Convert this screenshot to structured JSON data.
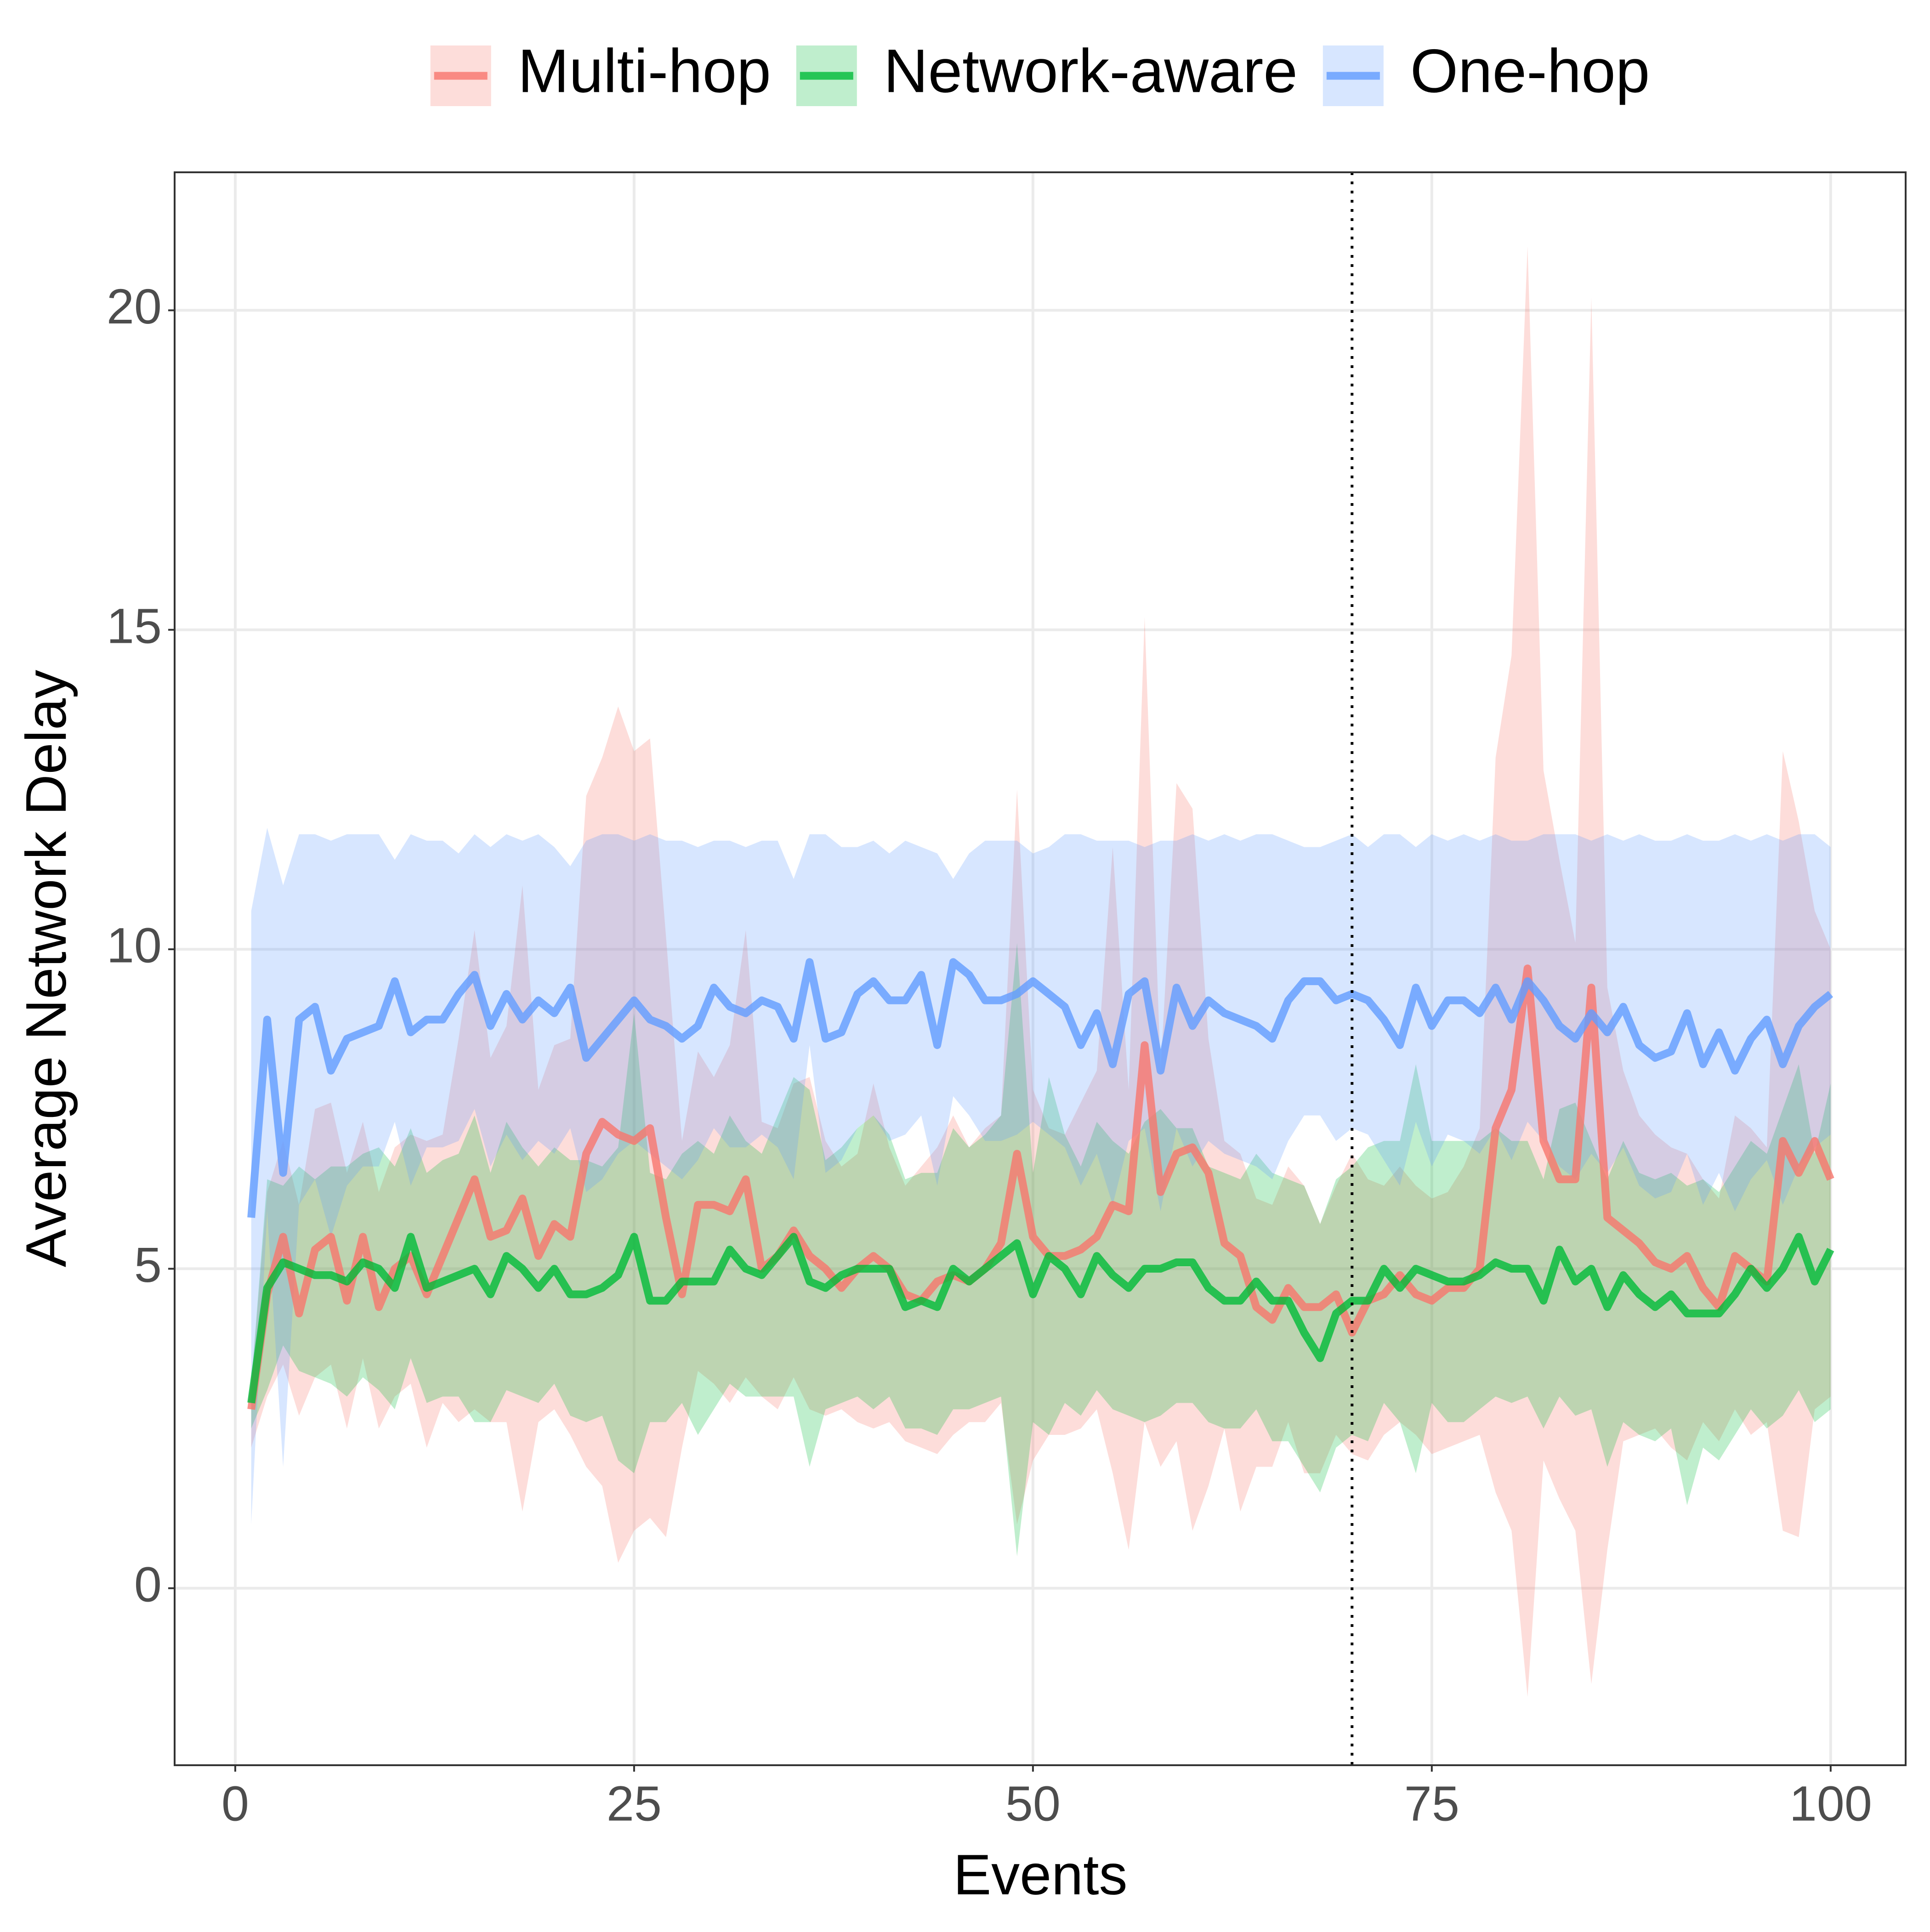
{
  "chart_data": {
    "type": "line",
    "x_label": "Events",
    "y_label": "Average Network Delay",
    "x": [
      1,
      2,
      3,
      4,
      5,
      6,
      7,
      8,
      9,
      10,
      11,
      12,
      13,
      14,
      15,
      16,
      17,
      18,
      19,
      20,
      21,
      22,
      23,
      24,
      25,
      26,
      27,
      28,
      29,
      30,
      31,
      32,
      33,
      34,
      35,
      36,
      37,
      38,
      39,
      40,
      41,
      42,
      43,
      44,
      45,
      46,
      47,
      48,
      49,
      50,
      51,
      52,
      53,
      54,
      55,
      56,
      57,
      58,
      59,
      60,
      61,
      62,
      63,
      64,
      65,
      66,
      67,
      68,
      69,
      70,
      71,
      72,
      73,
      74,
      75,
      76,
      77,
      78,
      79,
      80,
      81,
      82,
      83,
      84,
      85,
      86,
      87,
      88,
      89,
      90,
      91,
      92,
      93,
      94,
      95,
      96,
      97,
      98,
      99,
      100
    ],
    "series": [
      {
        "name": "Multi-hop",
        "color": "#F8766D",
        "values": [
          2.8,
          4.6,
          5.5,
          4.3,
          5.3,
          5.5,
          4.5,
          5.5,
          4.4,
          5.0,
          5.2,
          4.6,
          5.2,
          5.8,
          6.4,
          5.5,
          5.6,
          6.1,
          5.2,
          5.7,
          5.5,
          6.8,
          7.3,
          7.1,
          7.0,
          7.2,
          5.8,
          4.6,
          6.0,
          6.0,
          5.9,
          6.4,
          5.0,
          5.2,
          5.6,
          5.2,
          5.0,
          4.7,
          5.0,
          5.2,
          5.0,
          4.6,
          4.5,
          4.8,
          4.9,
          4.8,
          5.0,
          5.4,
          6.8,
          5.5,
          5.2,
          5.2,
          5.3,
          5.5,
          6.0,
          5.9,
          8.5,
          6.2,
          6.8,
          6.9,
          6.5,
          5.4,
          5.2,
          4.4,
          4.2,
          4.7,
          4.4,
          4.4,
          4.6,
          4.0,
          4.5,
          4.6,
          4.9,
          4.6,
          4.5,
          4.7,
          4.7,
          5.0,
          7.2,
          7.8,
          9.7,
          7.0,
          6.4,
          6.4,
          9.4,
          5.8,
          5.6,
          5.4,
          5.1,
          5.0,
          5.2,
          4.7,
          4.4,
          5.2,
          5.0,
          4.8,
          7.0,
          6.5,
          7.0,
          6.4
        ],
        "upper": [
          3.2,
          6.2,
          7.0,
          6.0,
          7.5,
          7.6,
          6.5,
          7.3,
          6.2,
          6.9,
          7.1,
          7.0,
          7.1,
          8.6,
          10.3,
          8.3,
          8.8,
          11.0,
          7.8,
          8.5,
          8.6,
          12.4,
          13.0,
          13.8,
          13.1,
          13.3,
          10.2,
          7.0,
          8.4,
          8.0,
          8.5,
          10.3,
          7.3,
          7.2,
          7.9,
          8.0,
          7.0,
          6.6,
          6.8,
          7.9,
          6.9,
          6.3,
          6.6,
          6.9,
          7.4,
          6.9,
          7.2,
          7.4,
          12.5,
          7.8,
          7.2,
          7.1,
          7.6,
          8.1,
          11.6,
          7.8,
          15.2,
          8.1,
          12.6,
          12.2,
          8.6,
          7.0,
          6.8,
          6.1,
          6.0,
          6.6,
          6.3,
          5.7,
          6.3,
          6.8,
          6.4,
          6.3,
          6.6,
          6.3,
          6.1,
          6.2,
          6.6,
          7.2,
          13.0,
          14.6,
          21.0,
          12.8,
          11.4,
          10.1,
          20.2,
          9.4,
          8.1,
          7.4,
          7.1,
          6.9,
          6.8,
          6.4,
          6.1,
          7.4,
          7.2,
          6.9,
          13.1,
          12.0,
          10.6,
          10.0
        ],
        "lower": [
          2.2,
          3.0,
          3.5,
          2.7,
          3.3,
          3.5,
          2.5,
          3.6,
          2.5,
          3.0,
          3.2,
          2.2,
          2.9,
          2.6,
          2.8,
          2.6,
          2.6,
          1.2,
          2.6,
          2.8,
          2.4,
          1.9,
          1.6,
          0.4,
          0.9,
          1.1,
          0.8,
          2.2,
          3.4,
          3.2,
          2.9,
          3.3,
          3.0,
          2.8,
          3.3,
          2.8,
          2.7,
          2.8,
          2.6,
          2.5,
          2.6,
          2.3,
          2.2,
          2.1,
          2.4,
          2.6,
          2.6,
          2.9,
          1.0,
          2.0,
          2.4,
          2.4,
          2.5,
          2.8,
          1.8,
          0.6,
          2.6,
          1.9,
          2.3,
          0.9,
          1.6,
          2.5,
          1.2,
          1.9,
          1.9,
          2.6,
          1.8,
          1.8,
          2.4,
          2.1,
          2.0,
          2.4,
          2.6,
          2.4,
          2.1,
          2.2,
          2.3,
          2.4,
          1.5,
          0.9,
          -1.7,
          2.0,
          1.4,
          0.9,
          -1.5,
          0.6,
          2.3,
          2.4,
          2.5,
          2.2,
          2.0,
          2.6,
          2.3,
          2.8,
          2.4,
          2.6,
          0.9,
          0.8,
          2.8,
          3.0
        ]
      },
      {
        "name": "Network-aware",
        "color": "#00BA38",
        "values": [
          2.9,
          4.7,
          5.1,
          5.0,
          4.9,
          4.9,
          4.8,
          5.1,
          5.0,
          4.7,
          5.5,
          4.7,
          4.8,
          4.9,
          5.0,
          4.6,
          5.2,
          5.0,
          4.7,
          5.0,
          4.6,
          4.6,
          4.7,
          4.9,
          5.5,
          4.5,
          4.5,
          4.8,
          4.8,
          4.8,
          5.3,
          5.0,
          4.9,
          5.2,
          5.5,
          4.8,
          4.7,
          4.9,
          5.0,
          5.0,
          5.0,
          4.4,
          4.5,
          4.4,
          5.0,
          4.8,
          5.0,
          5.2,
          5.4,
          4.6,
          5.2,
          5.0,
          4.6,
          5.2,
          4.9,
          4.7,
          5.0,
          5.0,
          5.1,
          5.1,
          4.7,
          4.5,
          4.5,
          4.8,
          4.5,
          4.5,
          4.0,
          3.6,
          4.3,
          4.5,
          4.5,
          5.0,
          4.7,
          5.0,
          4.9,
          4.8,
          4.8,
          4.9,
          5.1,
          5.0,
          5.0,
          4.5,
          5.3,
          4.8,
          5.0,
          4.4,
          4.9,
          4.6,
          4.4,
          4.6,
          4.3,
          4.3,
          4.3,
          4.6,
          5.0,
          4.7,
          5.0,
          5.5,
          4.8,
          5.3
        ],
        "upper": [
          3.2,
          6.4,
          6.3,
          6.6,
          6.4,
          6.6,
          6.6,
          6.8,
          6.9,
          6.6,
          7.2,
          6.5,
          6.7,
          6.8,
          7.4,
          6.5,
          7.3,
          6.9,
          6.6,
          6.9,
          6.7,
          6.7,
          6.6,
          6.9,
          9.0,
          6.5,
          6.4,
          6.8,
          7.0,
          6.8,
          7.4,
          7.0,
          6.8,
          7.4,
          8.0,
          7.8,
          6.7,
          6.9,
          7.2,
          7.4,
          7.1,
          6.4,
          6.5,
          6.5,
          7.2,
          6.9,
          7.1,
          7.4,
          10.1,
          6.5,
          8.0,
          7.1,
          6.6,
          7.3,
          7.0,
          6.8,
          7.3,
          7.5,
          7.2,
          7.2,
          6.6,
          6.5,
          6.4,
          6.8,
          6.5,
          6.4,
          6.3,
          5.7,
          6.4,
          6.6,
          6.9,
          7.0,
          7.0,
          8.2,
          7.0,
          7.0,
          7.0,
          7.0,
          7.2,
          7.0,
          7.0,
          6.4,
          7.5,
          7.6,
          7.0,
          6.4,
          7.0,
          6.5,
          6.4,
          6.5,
          6.3,
          6.4,
          6.2,
          6.6,
          7.0,
          6.8,
          7.5,
          8.2,
          6.8,
          7.9
        ],
        "lower": [
          2.5,
          3.1,
          3.8,
          3.4,
          3.3,
          3.2,
          3.0,
          3.3,
          3.1,
          2.8,
          3.6,
          2.9,
          3.0,
          3.0,
          2.6,
          2.6,
          3.1,
          3.0,
          2.9,
          3.2,
          2.7,
          2.6,
          2.7,
          2.0,
          1.8,
          2.6,
          2.6,
          2.9,
          2.4,
          2.8,
          3.2,
          3.0,
          3.0,
          3.0,
          3.0,
          1.9,
          2.8,
          2.9,
          3.0,
          2.8,
          3.0,
          2.5,
          2.5,
          2.4,
          2.8,
          2.8,
          2.9,
          3.0,
          0.5,
          2.6,
          2.4,
          2.9,
          2.7,
          3.1,
          2.8,
          2.7,
          2.6,
          2.7,
          2.9,
          2.9,
          2.6,
          2.5,
          2.5,
          2.8,
          2.3,
          2.3,
          1.9,
          1.5,
          2.2,
          2.4,
          2.3,
          2.9,
          2.6,
          1.8,
          2.9,
          2.6,
          2.6,
          2.8,
          3.0,
          2.9,
          3.0,
          2.5,
          3.0,
          2.7,
          2.8,
          1.9,
          2.6,
          2.4,
          2.3,
          2.5,
          1.3,
          2.2,
          2.0,
          2.4,
          2.8,
          2.5,
          2.7,
          3.1,
          2.6,
          2.8
        ]
      },
      {
        "name": "One-hop",
        "color": "#619CFF",
        "values": [
          5.8,
          8.9,
          6.5,
          8.9,
          9.1,
          8.1,
          8.6,
          8.7,
          8.8,
          9.5,
          8.7,
          8.9,
          8.9,
          9.3,
          9.6,
          8.8,
          9.3,
          8.9,
          9.2,
          9.0,
          9.4,
          8.3,
          8.6,
          8.9,
          9.2,
          8.9,
          8.8,
          8.6,
          8.8,
          9.4,
          9.1,
          9.0,
          9.2,
          9.1,
          8.6,
          9.8,
          8.6,
          8.7,
          9.3,
          9.5,
          9.2,
          9.2,
          9.6,
          8.5,
          9.8,
          9.6,
          9.2,
          9.2,
          9.3,
          9.5,
          9.3,
          9.1,
          8.5,
          9.0,
          8.2,
          9.3,
          9.5,
          8.1,
          9.4,
          8.8,
          9.2,
          9.0,
          8.9,
          8.8,
          8.6,
          9.2,
          9.5,
          9.5,
          9.2,
          9.3,
          9.2,
          8.9,
          8.5,
          9.4,
          8.8,
          9.2,
          9.2,
          9.0,
          9.4,
          8.9,
          9.5,
          9.2,
          8.8,
          8.6,
          9.0,
          8.7,
          9.1,
          8.5,
          8.3,
          8.4,
          9.0,
          8.2,
          8.7,
          8.1,
          8.6,
          8.9,
          8.2,
          8.8,
          9.1,
          9.3
        ],
        "upper": [
          10.6,
          11.9,
          11.0,
          11.8,
          11.8,
          11.7,
          11.8,
          11.8,
          11.8,
          11.4,
          11.8,
          11.7,
          11.7,
          11.5,
          11.8,
          11.6,
          11.8,
          11.7,
          11.8,
          11.6,
          11.3,
          11.7,
          11.8,
          11.8,
          11.7,
          11.8,
          11.7,
          11.7,
          11.6,
          11.7,
          11.7,
          11.6,
          11.7,
          11.7,
          11.1,
          11.8,
          11.8,
          11.6,
          11.6,
          11.7,
          11.5,
          11.7,
          11.6,
          11.5,
          11.1,
          11.5,
          11.7,
          11.7,
          11.7,
          11.5,
          11.6,
          11.8,
          11.8,
          11.7,
          11.7,
          11.7,
          11.6,
          11.7,
          11.7,
          11.8,
          11.7,
          11.8,
          11.7,
          11.8,
          11.8,
          11.7,
          11.6,
          11.6,
          11.7,
          11.8,
          11.6,
          11.8,
          11.8,
          11.6,
          11.8,
          11.7,
          11.8,
          11.7,
          11.8,
          11.7,
          11.7,
          11.8,
          11.8,
          11.8,
          11.7,
          11.8,
          11.7,
          11.8,
          11.7,
          11.7,
          11.8,
          11.7,
          11.7,
          11.8,
          11.7,
          11.8,
          11.7,
          11.8,
          11.8,
          11.6
        ],
        "lower": [
          1.0,
          5.9,
          1.9,
          6.0,
          6.4,
          5.5,
          6.3,
          6.6,
          6.6,
          7.3,
          6.3,
          6.9,
          6.9,
          7.0,
          7.5,
          6.6,
          7.1,
          6.7,
          7.0,
          6.8,
          7.2,
          6.2,
          6.4,
          6.8,
          7.0,
          6.8,
          6.6,
          6.4,
          6.7,
          7.2,
          6.9,
          6.9,
          7.1,
          6.9,
          6.4,
          8.5,
          6.5,
          6.7,
          7.2,
          7.4,
          7.0,
          7.1,
          7.4,
          6.3,
          7.7,
          7.4,
          7.0,
          7.0,
          7.1,
          7.3,
          7.1,
          6.9,
          6.3,
          6.8,
          6.0,
          7.0,
          7.2,
          5.9,
          7.2,
          6.6,
          7.0,
          6.8,
          6.7,
          6.6,
          6.4,
          7.0,
          7.4,
          7.4,
          7.0,
          7.2,
          7.1,
          6.7,
          6.3,
          7.3,
          6.6,
          7.1,
          7.0,
          6.8,
          7.2,
          6.7,
          7.3,
          7.0,
          6.6,
          6.4,
          6.8,
          6.5,
          6.9,
          6.3,
          6.1,
          6.2,
          6.8,
          6.0,
          6.5,
          5.9,
          6.4,
          6.7,
          6.0,
          6.6,
          6.9,
          7.1
        ]
      }
    ],
    "xlim": [
      -3.8,
      104.7
    ],
    "ylim": [
      -2.77,
      22.16
    ],
    "xticks": [
      0,
      25,
      50,
      75,
      100
    ],
    "yticks": [
      0,
      5,
      10,
      15,
      20
    ],
    "grid": true,
    "vline": 70,
    "legend": "top"
  }
}
